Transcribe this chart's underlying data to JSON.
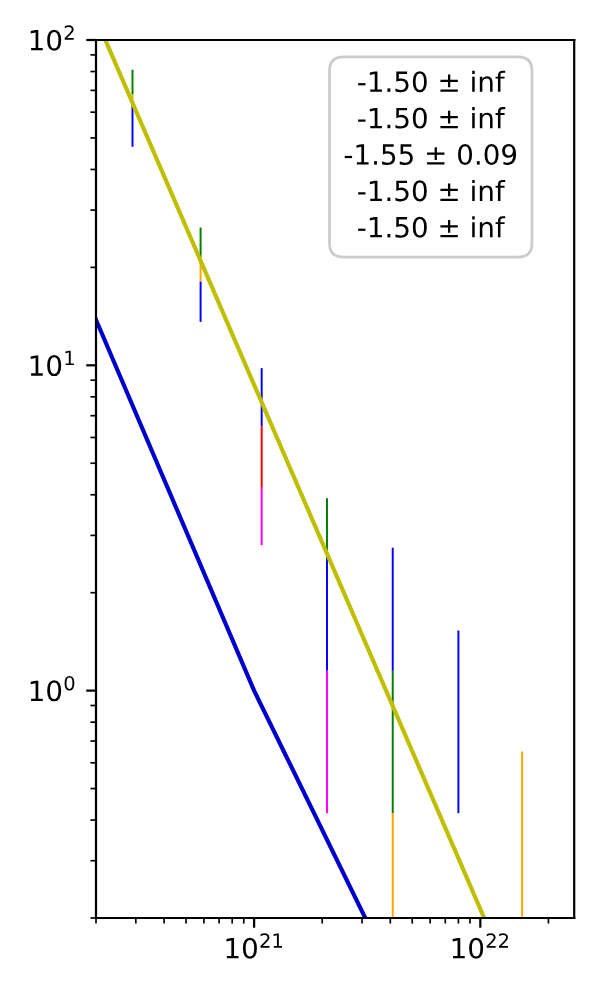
{
  "chart_data": {
    "type": "bar",
    "log": "xy",
    "grid": false,
    "xlim": [
      2e+20,
      2.6e+22
    ],
    "ylim": [
      0.2,
      100
    ],
    "xticks": [
      {
        "value": 1e+21,
        "label": "10$^{21}$"
      },
      {
        "value": 1e+22,
        "label": "10$^{22}$"
      }
    ],
    "yticks": [
      {
        "value": 1,
        "label": "10$^{0}$"
      },
      {
        "value": 10,
        "label": "10$^{1}$"
      },
      {
        "value": 100,
        "label": "10$^{2}$"
      }
    ],
    "annotations": [
      "-1.50 ± inf",
      "-1.50 ± inf",
      "-1.55 ± 0.09",
      "-1.50 ± inf",
      "-1.50 ± inf"
    ],
    "series": [
      {
        "color": "#0000ff",
        "x": [
          2.9e+20,
          5.8e+20,
          1.08e+21,
          2.1e+21,
          4.1e+21,
          8e+21
        ],
        "base": [
          47,
          13.6,
          6.5,
          1.15,
          1.15,
          0.42
        ],
        "values": [
          16,
          4.5,
          3.3,
          1.45,
          1.6,
          1.11
        ]
      },
      {
        "color": "#008000",
        "x": [
          2.9e+20,
          5.8e+20,
          2.1e+21,
          4.1e+21
        ],
        "base": [
          68,
          21.4,
          2.6,
          0.42
        ],
        "values": [
          13,
          5.1,
          1.3,
          0.73
        ]
      },
      {
        "color": "#ff0000",
        "x": [
          1.08e+21
        ],
        "base": [
          4.2
        ],
        "values": [
          2.3
        ]
      },
      {
        "color": "#ff00ff",
        "x": [
          1.08e+21,
          2.1e+21
        ],
        "base": [
          2.8,
          0.42
        ],
        "values": [
          1.4,
          0.73
        ]
      },
      {
        "color": "#ffa500",
        "x": [
          2.9e+20,
          5.8e+20,
          4.1e+21,
          1.53e+22
        ],
        "base": [
          63,
          18.1,
          0.2,
          0.2
        ],
        "values": [
          5,
          3.3,
          0.22,
          0.45
        ]
      },
      {
        "type": "line",
        "color": "#bfbf00",
        "x": [
          2.2e+20,
          1.04e+22
        ],
        "values": [
          100,
          0.2
        ]
      },
      {
        "type": "line",
        "color": "#0000cc",
        "x": [
          2e+20,
          1e+21,
          3.1e+21
        ],
        "values": [
          13.8,
          1.0,
          0.2
        ]
      }
    ]
  }
}
